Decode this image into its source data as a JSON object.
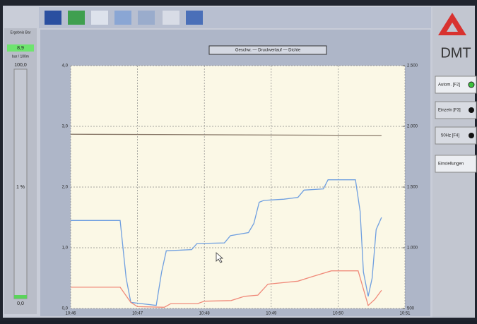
{
  "left_panel": {
    "header": "Ergebnis Bar",
    "value": "8,9",
    "unit": "bar / 100m",
    "scale_top": "100,0",
    "scale_mid": "1 %",
    "scale_bottom": "0,0"
  },
  "right_panel": {
    "logo": "DMT",
    "buttons": [
      "Autom. [F2]",
      "Einzeln [F3]",
      "50Hz [F4]"
    ],
    "settings": "Einstellungen"
  },
  "chart_data": {
    "type": "line",
    "legend_text": "Geschw. — Druckverlauf — Dichte",
    "xlim": [
      0,
      5
    ],
    "xticks": [
      {
        "value": 0,
        "label": "10:46"
      },
      {
        "value": 1,
        "label": "10:47"
      },
      {
        "value": 2,
        "label": "10:48"
      },
      {
        "value": 3,
        "label": "10:49"
      },
      {
        "value": 4,
        "label": "10:50"
      },
      {
        "value": 5,
        "label": "10:51"
      }
    ],
    "ylim": [
      0,
      4
    ],
    "yticks": [
      {
        "value": 0,
        "label": "0,0"
      },
      {
        "value": 1,
        "label": "1,0"
      },
      {
        "value": 2,
        "label": "2,0"
      },
      {
        "value": 3,
        "label": "3,0"
      },
      {
        "value": 4,
        "label": "4,0"
      }
    ],
    "y2lim": [
      500,
      2500
    ],
    "y2ticks": [
      500,
      {
        "value": 1000,
        "label": "1.000"
      },
      {
        "value": 1500,
        "label": "1.500"
      },
      {
        "value": 2000,
        "label": "2.000"
      },
      {
        "value": 2500,
        "label": "2.500"
      }
    ],
    "grid": true,
    "series": [
      {
        "color": "#6f9fe0",
        "x": [
          0,
          0.74,
          0.83,
          0.9,
          1.28,
          1.36,
          1.43,
          1.81,
          1.89,
          2.3,
          2.39,
          2.66,
          2.74,
          2.82,
          2.89,
          3.19,
          3.4,
          3.49,
          3.78,
          3.85,
          4.26,
          4.33,
          4.38,
          4.45,
          4.51,
          4.57,
          4.65
        ],
        "values": [
          1.45,
          1.45,
          0.5,
          0.1,
          0.05,
          0.6,
          0.95,
          0.97,
          1.07,
          1.08,
          1.2,
          1.25,
          1.4,
          1.75,
          1.78,
          1.8,
          1.83,
          1.95,
          1.97,
          2.12,
          2.12,
          1.6,
          0.6,
          0.2,
          0.5,
          1.3,
          1.5
        ]
      },
      {
        "color": "#f08a7a",
        "x": [
          0,
          0.74,
          0.9,
          1.0,
          1.4,
          1.5,
          1.9,
          2.0,
          2.4,
          2.6,
          2.8,
          2.95,
          3.4,
          3.6,
          3.9,
          4.3,
          4.45,
          4.55,
          4.65
        ],
        "values": [
          0.35,
          0.35,
          0.1,
          0.03,
          0.02,
          0.08,
          0.08,
          0.12,
          0.13,
          0.2,
          0.22,
          0.4,
          0.45,
          0.52,
          0.62,
          0.62,
          0.05,
          0.15,
          0.3
        ]
      },
      {
        "color": "#8a7a6a",
        "x": [
          0,
          2.3,
          4.65
        ],
        "values": [
          2.87,
          2.86,
          2.85
        ]
      }
    ]
  }
}
